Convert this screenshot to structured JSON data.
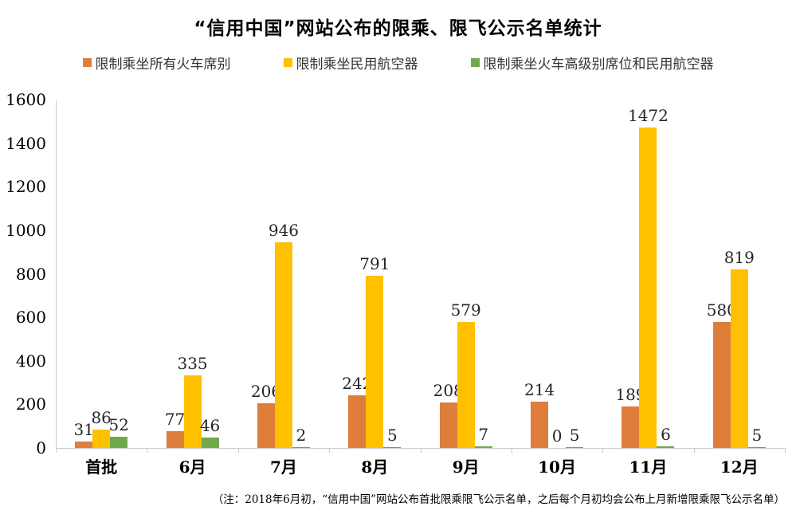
{
  "title": "“信用中国”网站公布的限乘、限飞公示名单统计",
  "footnote": "（注：2018年6月初，“信用中国”网站公布首批限乘限飞公示名单，之后每个月初均会公布上月新增限乘限飞公示名单）",
  "colors": {
    "axis": "#c8c8c8",
    "series1_orange": "#de7e3a",
    "series2_yellow": "#ffc000",
    "series3_green": "#70a94c"
  },
  "chart_data": {
    "type": "bar",
    "title": "“信用中国”网站公布的限乘、限飞公示名单统计",
    "categories": [
      "首批",
      "6月",
      "7月",
      "8月",
      "9月",
      "10月",
      "11月",
      "12月"
    ],
    "series": [
      {
        "name": "限制乘坐所有火车席别",
        "color": "#de7e3a",
        "values": [
          31,
          77,
          206,
          242,
          208,
          214,
          189,
          580
        ]
      },
      {
        "name": "限制乘坐民用航空器",
        "color": "#ffc000",
        "values": [
          86,
          335,
          946,
          791,
          579,
          0,
          1472,
          819
        ]
      },
      {
        "name": "限制乘坐火车高级别席位和民用航空器",
        "color": "#70a94c",
        "values": [
          52,
          46,
          2,
          5,
          7,
          5,
          6,
          5
        ]
      }
    ],
    "xlabel": "",
    "ylabel": "",
    "ylim": [
      0,
      1600
    ],
    "yticks": [
      0,
      200,
      400,
      600,
      800,
      1000,
      1200,
      1400,
      1600
    ],
    "grid": false,
    "legend_position": "top",
    "data_labels": true
  }
}
